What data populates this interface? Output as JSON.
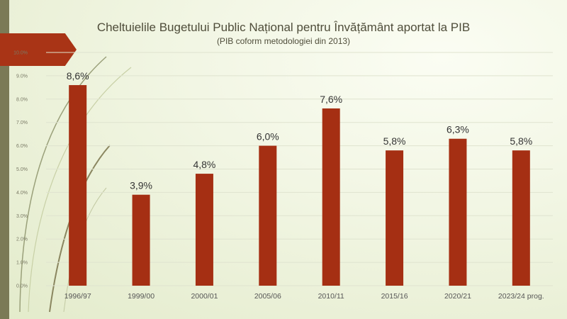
{
  "title": "Cheltuielile  Bugetului Public Național pentru Învățământ aportat la PIB",
  "subtitle": "(PIB coform metodologiei din 2013)",
  "colors": {
    "bar": "#a52f13",
    "accent_bar": "#7b7a56",
    "arrow": "#a93416",
    "grid": "#dfe3cf"
  },
  "chart_data": {
    "type": "bar",
    "categories": [
      "1996/97",
      "1999/00",
      "2000/01",
      "2005/06",
      "2010/11",
      "2015/16",
      "2020/21",
      "2023/24 prog."
    ],
    "values": [
      8.6,
      3.9,
      4.8,
      6.0,
      7.6,
      5.8,
      6.3,
      5.8
    ],
    "data_labels": [
      "8,6%",
      "3,9%",
      "4,8%",
      "6,0%",
      "7,6%",
      "5,8%",
      "6,3%",
      "5,8%"
    ],
    "y_ticks": [
      0,
      1,
      2,
      3,
      4,
      5,
      6,
      7,
      8,
      9,
      10
    ],
    "y_tick_labels": [
      "0.0%",
      "1.0%",
      "2.0%",
      "3.0%",
      "4.0%",
      "5.0%",
      "6.0%",
      "7.0%",
      "8.0%",
      "9.0%",
      "10.0%"
    ],
    "ylim": [
      0,
      10
    ],
    "grid": true,
    "legend": "none"
  }
}
